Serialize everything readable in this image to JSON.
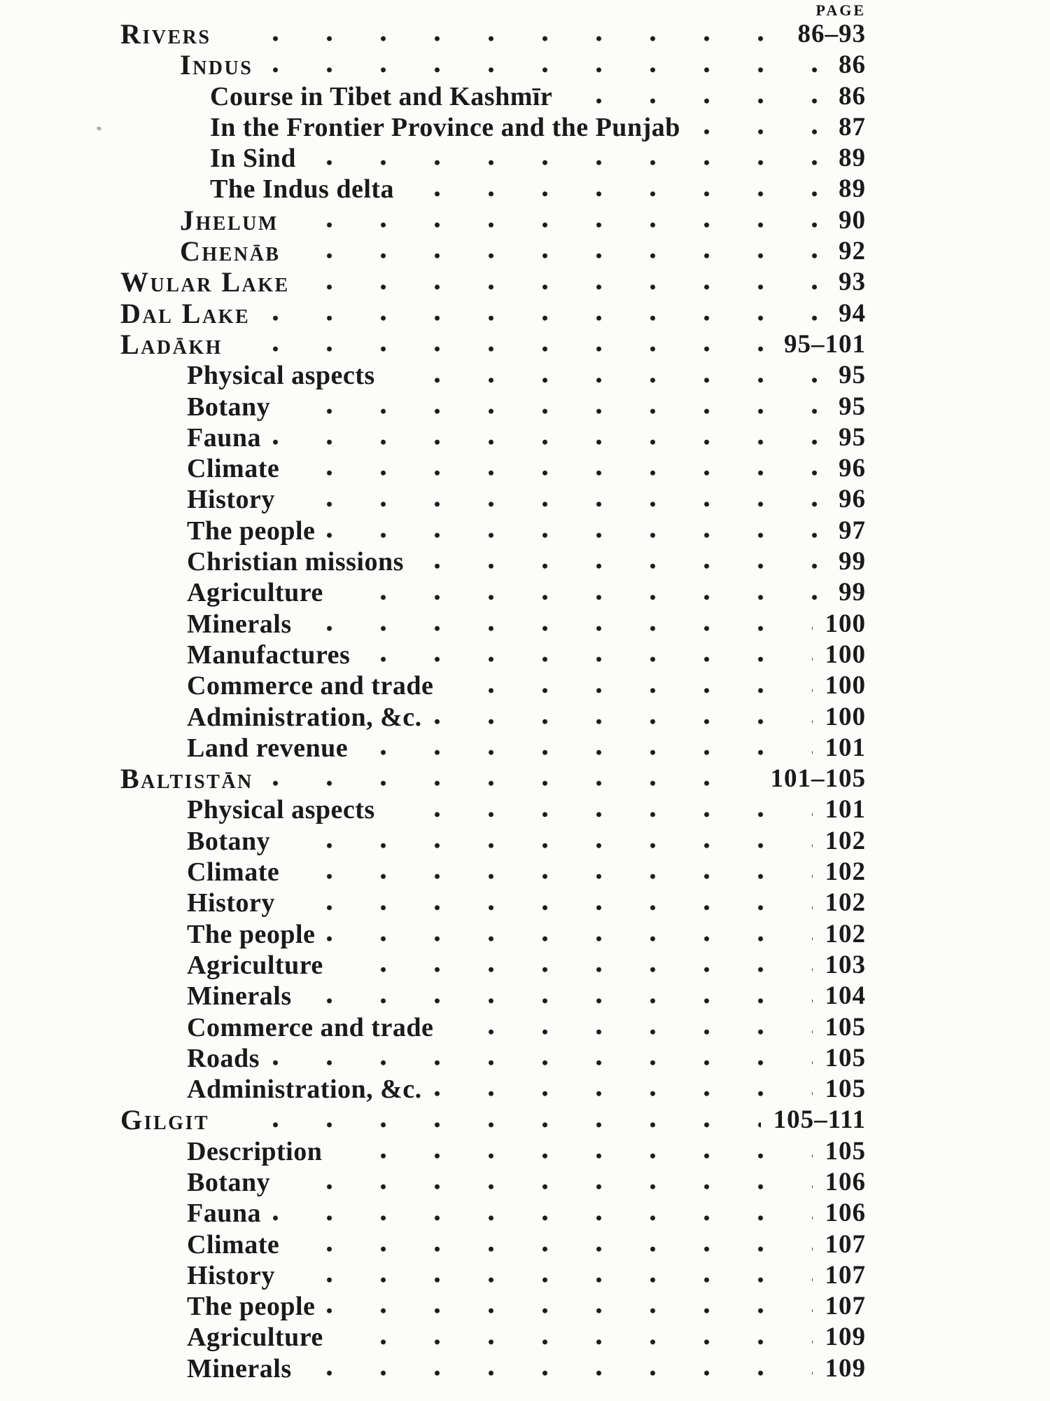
{
  "page_header": {
    "label": "PAGE"
  },
  "colors": {
    "ink": "#1a1a1a",
    "paper": "#fcfcfa"
  },
  "toc": {
    "entries": [
      {
        "type": "main",
        "label": "Rivers",
        "page": "86–93"
      },
      {
        "type": "sub",
        "label": "Indus",
        "page": "86"
      },
      {
        "type": "subsub",
        "label": "Course in Tibet and Kashmīr",
        "page": "86"
      },
      {
        "type": "subsub",
        "label": "In the Frontier Province and the Punjab",
        "page": "87"
      },
      {
        "type": "subsub",
        "label": "In Sind",
        "page": "89"
      },
      {
        "type": "subsub",
        "label": "The Indus delta",
        "page": "89"
      },
      {
        "type": "sub",
        "label": "Jhelum",
        "page": "90"
      },
      {
        "type": "sub",
        "label": "Chenāb",
        "page": "92"
      },
      {
        "type": "main",
        "label": "Wular Lake",
        "page": "93"
      },
      {
        "type": "main",
        "label": "Dal Lake",
        "page": "94"
      },
      {
        "type": "main",
        "label": "Ladākh",
        "page": "95–101"
      },
      {
        "type": "item",
        "label": "Physical aspects",
        "page": "95"
      },
      {
        "type": "item",
        "label": "Botany",
        "page": "95"
      },
      {
        "type": "item",
        "label": "Fauna",
        "page": "95"
      },
      {
        "type": "item",
        "label": "Climate",
        "page": "96"
      },
      {
        "type": "item",
        "label": "History",
        "page": "96"
      },
      {
        "type": "item",
        "label": "The people",
        "page": "97"
      },
      {
        "type": "item",
        "label": "Christian missions",
        "page": "99"
      },
      {
        "type": "item",
        "label": "Agriculture",
        "page": "99"
      },
      {
        "type": "item",
        "label": "Minerals",
        "page": "100"
      },
      {
        "type": "item",
        "label": "Manufactures",
        "page": "100"
      },
      {
        "type": "item",
        "label": "Commerce and trade",
        "page": "100"
      },
      {
        "type": "item",
        "label": "Administration, &c.",
        "page": "100"
      },
      {
        "type": "item",
        "label": "Land revenue",
        "page": "101"
      },
      {
        "type": "main",
        "label": "Baltistān",
        "page": "101–105"
      },
      {
        "type": "item",
        "label": "Physical aspects",
        "page": "101"
      },
      {
        "type": "item",
        "label": "Botany",
        "page": "102"
      },
      {
        "type": "item",
        "label": "Climate",
        "page": "102"
      },
      {
        "type": "item",
        "label": "History",
        "page": "102"
      },
      {
        "type": "item",
        "label": "The people",
        "page": "102"
      },
      {
        "type": "item",
        "label": "Agriculture",
        "page": "103"
      },
      {
        "type": "item",
        "label": "Minerals",
        "page": "104"
      },
      {
        "type": "item",
        "label": "Commerce and trade",
        "page": "105"
      },
      {
        "type": "item",
        "label": "Roads",
        "page": "105"
      },
      {
        "type": "item",
        "label": "Administration, &c.",
        "page": "105"
      },
      {
        "type": "main",
        "label": "Gilgit",
        "page": "105–111"
      },
      {
        "type": "item",
        "label": "Description",
        "page": "105"
      },
      {
        "type": "item",
        "label": "Botany",
        "page": "106"
      },
      {
        "type": "item",
        "label": "Fauna",
        "page": "106"
      },
      {
        "type": "item",
        "label": "Climate",
        "page": "107"
      },
      {
        "type": "item",
        "label": "History",
        "page": "107"
      },
      {
        "type": "item",
        "label": "The people",
        "page": "107"
      },
      {
        "type": "item",
        "label": "Agriculture",
        "page": "109"
      },
      {
        "type": "item",
        "label": "Minerals",
        "page": "109"
      }
    ]
  }
}
